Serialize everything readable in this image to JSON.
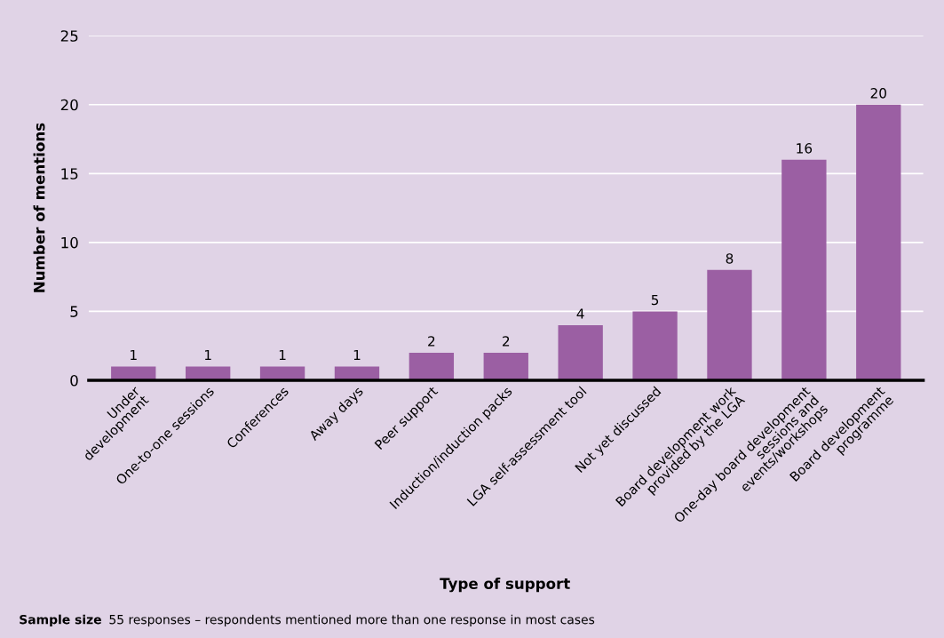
{
  "chart_data": {
    "type": "bar",
    "xlabel": "Type of support",
    "ylabel": "Number of mentions",
    "categories": [
      "Under\ndevelopment",
      "One-to-one sessions",
      "Conferences",
      "Away days",
      "Peer support",
      "Induction/induction packs",
      "LGA self-assessment tool",
      "Not yet discussed",
      "Board development work\nprovided by the LGA",
      "One-day board development\nsessions and\nevents/workshops",
      "Board development\nprogramme"
    ],
    "values": [
      1,
      1,
      1,
      1,
      2,
      2,
      4,
      5,
      8,
      16,
      20
    ],
    "color": "#9b5fa3",
    "ylim": [
      0,
      25
    ],
    "yticks": [
      0,
      5,
      10,
      15,
      20,
      25
    ],
    "grid": "y",
    "data_labels": true,
    "annotations": [
      "Sample size",
      "55 responses – respondents mentioned more than one response in most cases"
    ]
  }
}
